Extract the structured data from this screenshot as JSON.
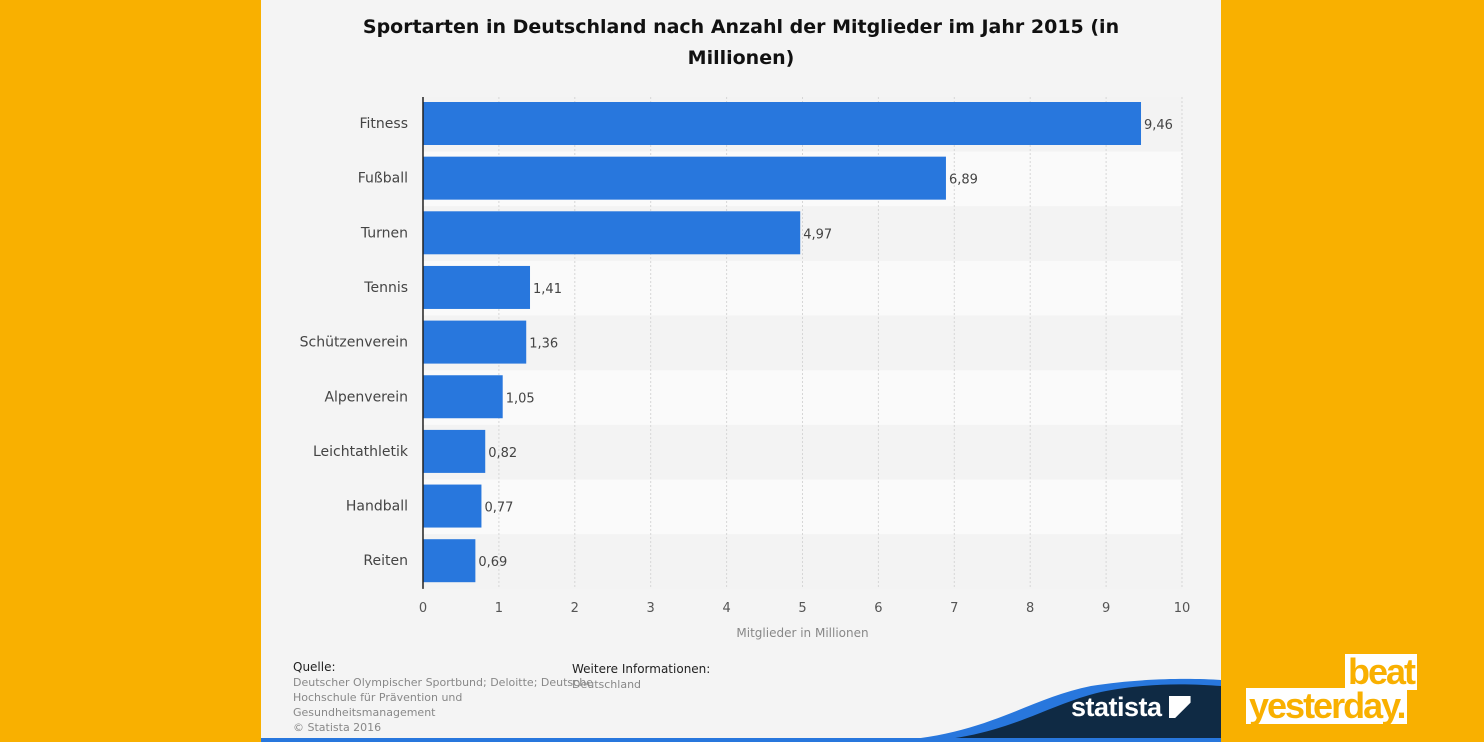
{
  "chart_data": {
    "type": "bar",
    "orientation": "horizontal",
    "title": "Sportarten in Deutschland nach Anzahl der Mitglieder im Jahr 2015 (in Millionen)",
    "title_lines": [
      "Sportarten in Deutschland nach Anzahl der Mitglieder im Jahr 2015 (in",
      "Millionen)"
    ],
    "categories": [
      "Fitness",
      "Fußball",
      "Turnen",
      "Tennis",
      "Schützenverein",
      "Alpenverein",
      "Leichtathletik",
      "Handball",
      "Reiten"
    ],
    "values": [
      9.46,
      6.89,
      4.97,
      1.41,
      1.36,
      1.05,
      0.82,
      0.77,
      0.69
    ],
    "data_labels": [
      "9,46",
      "6,89",
      "4,97",
      "1,41",
      "1,36",
      "1,05",
      "0,82",
      "0,77",
      "0,69"
    ],
    "xlabel": "Mitglieder in Millionen",
    "xlim": [
      0,
      10
    ],
    "xticks": [
      "0",
      "1",
      "2",
      "3",
      "4",
      "5",
      "6",
      "7",
      "8",
      "9",
      "10"
    ],
    "grid": true,
    "bar_color": "#2877DD"
  },
  "footer": {
    "source_heading": "Quelle:",
    "source_lines": [
      "Deutscher Olympischer Sportbund; Deloitte; Deutsche",
      "Hochschule für Prävention und",
      "Gesundheitsmanagement",
      "© Statista 2016"
    ],
    "info_heading": "Weitere Informationen:",
    "info_text": "Deutschland"
  },
  "branding": {
    "statista": "statista",
    "beat": "beat",
    "yesterday": "yesterday.",
    "background_color": "#F9B000"
  }
}
